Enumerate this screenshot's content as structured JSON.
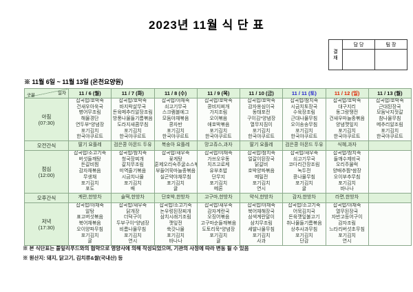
{
  "title": "2023년 11월 식 단 표",
  "subtitle": "※ 11월 6일 ~ 11월 13일 (온천요양원)",
  "approval": {
    "stamp": "결\n재",
    "columns": [
      "담 당",
      "팀 장"
    ]
  },
  "table": {
    "corner": {
      "top": "일자",
      "bottom": "구분"
    },
    "dates": [
      {
        "label": "11 / 6 (월)",
        "color": "#111111"
      },
      {
        "label": "11 / 7 (화)",
        "color": "#111111"
      },
      {
        "label": "11 / 8 (수)",
        "color": "#111111"
      },
      {
        "label": "11 / 9 (목)",
        "color": "#111111"
      },
      {
        "label": "11 / 10 (금)",
        "color": "#111111"
      },
      {
        "label": "11 / 11 (토)",
        "color": "#2222cc"
      },
      {
        "label": "11 / 12 (일)",
        "color": "#dd2200"
      },
      {
        "label": "11 / 13 (월)",
        "color": "#111111"
      }
    ],
    "rows": [
      {
        "label": "아침",
        "time": "(07:30)",
        "type": "meal",
        "cells": [
          [
            "잡곡밥/호박죽",
            "건새우아욱국",
            "병어무조림",
            "해물경단",
            "연두부*양념장",
            "포기김치",
            "한국야쿠르트"
          ],
          [
            "잡곡밥/호박죽",
            "바지락살무국",
            "돈육메추리알장조림",
            "방풍나물들기름볶음",
            "도라지새콤무침",
            "포기김치",
            "한국야쿠르트"
          ],
          [
            "잡곡밥/야채죽",
            "쇠고기무국",
            "스크램블에그",
            "모둠야채볶음",
            "콩자반",
            "포기김치",
            "한국야쿠르트"
          ],
          [
            "잡곡밥/호박죽",
            "콩비지찌개",
            "가지조림",
            "오이볶음",
            "애호박볶음",
            "포기김치",
            "한국야쿠르트"
          ],
          [
            "잡곡밥/호박죽",
            "감자옹심이국",
            "동태포전",
            "구이김*양념장",
            "열무지짐이",
            "포기김치",
            "한국야쿠르트"
          ],
          [
            "잡곡밥/참치죽",
            "시금치토장국",
            "수육장조림",
            "근대나물무침",
            "오이송송무침",
            "포기김치",
            "한국야쿠르트"
          ],
          [
            "잡곡밥/호박죽",
            "대구지리",
            "동그랑땡전",
            "건새우마늘종볶음",
            "양념깻잎지",
            "포기김치",
            "한국야쿠르트"
          ],
          [
            "잡곡밥/호박죽",
            "근대된장국",
            "모둠낙지젓갈",
            "참나물무침",
            "메추리알조림",
            "포기김치",
            "한국야쿠르트"
          ]
        ]
      },
      {
        "label": "오전간식",
        "time": "",
        "type": "snack",
        "cells": [
          "딸기 요플레",
          "검은콩 아몬드 두유",
          "복숭아 요플레",
          "망고쥬스,과자",
          "딸기 요플레",
          "검은콩 아몬드 두유",
          "식혜,과자",
          ""
        ]
      },
      {
        "label": "점심",
        "time": "(12:00)",
        "type": "meal",
        "cells": [
          [
            "잡곡밥/소고기죽",
            "버섯들깨탕",
            "돈갈비찜",
            "감자채볶음",
            "무생채",
            "포기김치",
            "포도"
          ],
          [
            "잡곡밥/참치죽",
            "청국장찌개",
            "갈치무조림",
            "미역줄기볶음",
            "시금치나물",
            "포기김치",
            "배"
          ],
          [
            "잡곡밥/새우죽",
            "꽃게탕",
            "훈제오리숙주굴소스볶음",
            "부들어묵마늘종볶음",
            "실곤약야채무침",
            "포기김치",
            "귤"
          ],
          [
            "잡곡밥/야채죽",
            "가쓰오우동",
            "치즈고로케",
            "유부초밥",
            "단무지",
            "포기김치",
            "메론"
          ],
          [
            "잡곡밥/참치죽",
            "얼갈이된장국",
            "닭갈비",
            "호박양파볶음",
            "메밀전",
            "포기김치",
            "연시"
          ],
          [
            "잡곡밥/새우죽",
            "쇠고기무국",
            "코다리간장조림",
            "녹두전",
            "콩나물무침",
            "포기김치",
            "귤"
          ],
          [
            "잡곡밥/참치죽",
            "들깨수제비국",
            "오리주물럭",
            "양배추찜*쌈장",
            "오이부추무침",
            "포기김치",
            "바나나"
          ],
          []
        ]
      },
      {
        "label": "오후간식",
        "time": "",
        "type": "snack",
        "cells": [
          "계란,한방차",
          "술떡,한방차",
          "단호박,한방차",
          "고구마,한방차",
          "약식,한방차",
          "감자,한방차",
          "라면,한방차",
          ""
        ]
      },
      {
        "label": "저녁",
        "time": "(17:30)",
        "type": "meal",
        "cells": [
          [
            "잡곡밥/야채죽",
            "알탕",
            "표고버섯볶음",
            "북어채볶음",
            "오이양파무침",
            "포기김치",
            "귤"
          ],
          [
            "잡곡밥/새우죽",
            "닭개장",
            "더덕구이",
            "두부구이*양념장",
            "비름나물무침",
            "포기김치",
            "연시"
          ],
          [
            "잡곡밥/소고기죽",
            "논우렁된장찌개",
            "삼치시래기조림",
            "깻잎전",
            "쑥갓나물",
            "포기김치",
            "바나나"
          ],
          [
            "잡곡밥/새우죽",
            "감자계란국",
            "오징어볶음",
            "고구마순들깨볶음",
            "도토리묵*양념장",
            "포기김치",
            "귤"
          ],
          [
            "잡곡밥/야채죽",
            "북어채해장국",
            "삼색계란말이",
            "삼치무조림",
            "세발나물무침",
            "포기김치",
            "사과"
          ],
          [
            "잡곡밥/소고기죽",
            "어묵김치국",
            "돈육깻잎불고기",
            "취나물들기름볶음",
            "상추사과무침",
            "포기김치",
            "단감"
          ],
          [
            "잡곡밥/야채죽",
            "열무된장국",
            "자반고등어구이",
            "감자조림",
            "느타리버섯초무침",
            "포기김치",
            "연시"
          ],
          []
        ]
      }
    ]
  },
  "footnotes": [
    "※ 본 식단표는 풀잎리푸드와의 협약으로 영양사에 의해 작성되었으며, 기관의 사정에 따라 변동 될 수 있음",
    "※ 원산지: 돼지, 닭고기, 김치류&쌀(국내산) 등"
  ],
  "colors": {
    "header_bg": "#dff2da",
    "cell_bg": "#fbfdfa",
    "grid": "#8aa88a",
    "saturday": "#2222cc",
    "sunday": "#dd2200"
  }
}
